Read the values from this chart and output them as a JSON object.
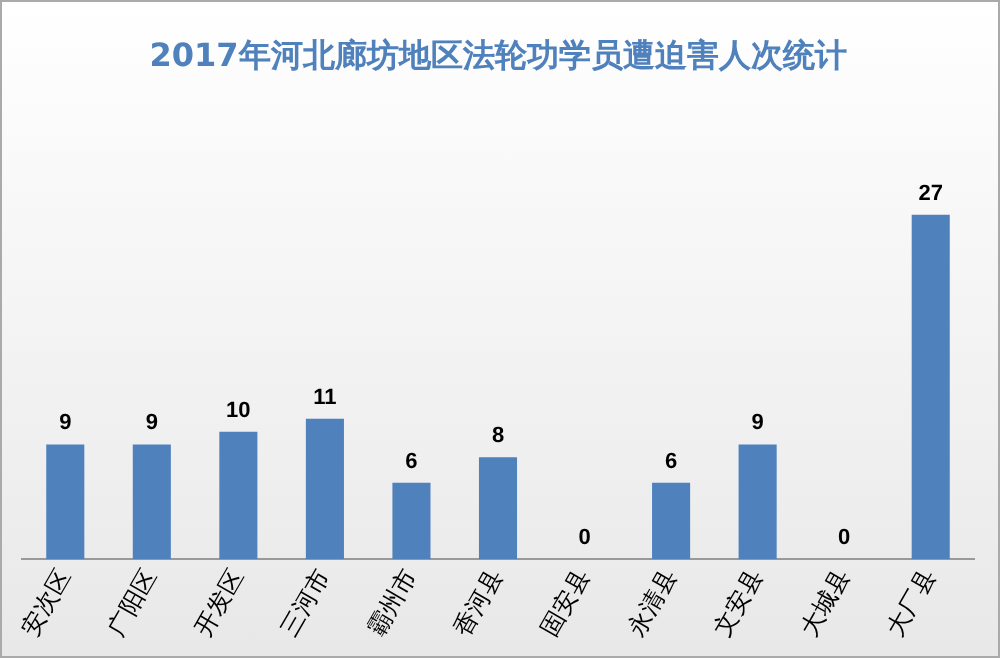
{
  "chart_data": {
    "type": "bar",
    "title": "2017年河北廊坊地区法轮功学员遭迫害人次统计",
    "categories": [
      "安次区",
      "广阳区",
      "开发区",
      "三河市",
      "霸州市",
      "香河县",
      "固安县",
      "永清县",
      "文安县",
      "大城县",
      "大厂县"
    ],
    "values": [
      9,
      9,
      10,
      11,
      6,
      8,
      0,
      6,
      9,
      0,
      27
    ],
    "color": "#4f81bd",
    "data_labels": true,
    "grid": false,
    "legend": false
  }
}
